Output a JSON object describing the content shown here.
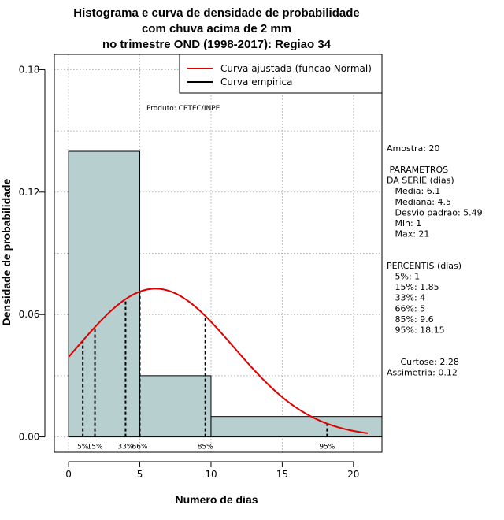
{
  "chart_data": {
    "type": "histogram",
    "title_lines": [
      "Histograma e curva de densidade de probabilidade",
      "com chuva acima de 2 mm",
      "no trimestre OND (1998-2017): Regiao 34"
    ],
    "xlabel": "Numero de dias",
    "ylabel": "Densidade de probabilidade",
    "xlim": [
      -1,
      22
    ],
    "ylim": [
      -0.0075,
      0.1875
    ],
    "x_ticks": [
      0,
      5,
      10,
      15,
      20
    ],
    "x_tick_labels": [
      "0",
      "5",
      "10",
      "15",
      "20"
    ],
    "y_ticks": [
      0.0,
      0.06,
      0.12,
      0.18
    ],
    "y_tick_labels": [
      "0.00",
      "0.06",
      "0.12",
      "0.18"
    ],
    "grid": true,
    "bins": [
      {
        "start": 0,
        "end": 5,
        "density": 0.14
      },
      {
        "start": 5,
        "end": 10,
        "density": 0.03
      },
      {
        "start": 10,
        "end": 22,
        "density": 0.01
      }
    ],
    "bar_color": "#b7cfcf",
    "normal_curve": {
      "mean": 6.1,
      "sd": 5.49,
      "x_start": 0,
      "x_end": 21,
      "color": "#e00000"
    },
    "percentile_lines": [
      {
        "label": "5%",
        "x": 1
      },
      {
        "label": "15%",
        "x": 1.85
      },
      {
        "label": "33%",
        "x": 4
      },
      {
        "label": "66%",
        "x": 5
      },
      {
        "label": "85%",
        "x": 9.6
      },
      {
        "label": "95%",
        "x": 18.15
      }
    ],
    "legend": [
      {
        "label": "Curva ajustada (funcao Normal)",
        "color": "#e00000"
      },
      {
        "label": "Curva empirica",
        "color": "#000000"
      }
    ],
    "legend_position": "top-right",
    "annotation": "Produto: CPTEC/INPE"
  },
  "side_panel": {
    "lines": [
      "Amostra: 20",
      "",
      " PARAMETROS",
      "DA SERIE (dias)",
      "   Media: 6.1",
      "   Mediana: 4.5",
      "   Desvio padrao: 5.49",
      "   Min: 1",
      "   Max: 21",
      "",
      "",
      "PERCENTIS (dias)",
      "   5%: 1",
      "   15%: 1.85",
      "   33%: 4",
      "   66%: 5",
      "   85%: 9.6",
      "   95%: 18.15",
      "",
      "",
      "     Curtose: 2.28",
      "Assimetria: 0.12"
    ]
  }
}
